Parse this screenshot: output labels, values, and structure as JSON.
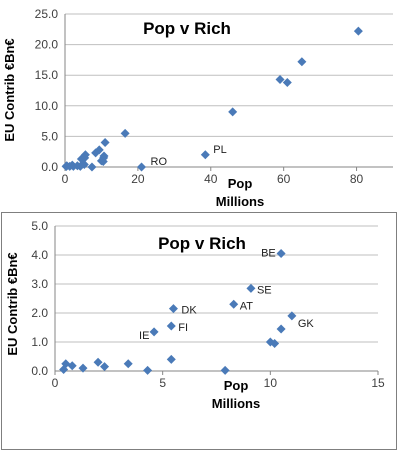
{
  "chart_data": [
    {
      "type": "scatter",
      "title": "Pop v Rich",
      "xlabel_line1": "Pop",
      "xlabel_line2": "Millions",
      "ylabel": "EU Contrib €Bn€",
      "xlim": [
        0,
        90
      ],
      "ylim": [
        0,
        25
      ],
      "xticks": [
        0,
        20,
        40,
        60,
        80
      ],
      "yticks": [
        "0.0",
        "5.0",
        "10.0",
        "15.0",
        "20.0",
        "25.0"
      ],
      "grid": "horizontal",
      "marker_color": "#4a7ab8",
      "points": [
        {
          "x": 0.3,
          "y": 0.1
        },
        {
          "x": 0.4,
          "y": 0.1
        },
        {
          "x": 0.5,
          "y": 0.2
        },
        {
          "x": 1.3,
          "y": 0.1
        },
        {
          "x": 2.0,
          "y": 0.3
        },
        {
          "x": 2.3,
          "y": 0.1
        },
        {
          "x": 3.4,
          "y": 0.2
        },
        {
          "x": 4.2,
          "y": 0.1
        },
        {
          "x": 4.5,
          "y": 1.3
        },
        {
          "x": 5.3,
          "y": 0.4
        },
        {
          "x": 5.4,
          "y": 1.5
        },
        {
          "x": 5.6,
          "y": 2.0
        },
        {
          "x": 7.4,
          "y": 0.0
        },
        {
          "x": 8.4,
          "y": 2.3
        },
        {
          "x": 9.4,
          "y": 2.8
        },
        {
          "x": 10.0,
          "y": 1.0
        },
        {
          "x": 10.5,
          "y": 0.9
        },
        {
          "x": 10.6,
          "y": 1.5
        },
        {
          "x": 10.7,
          "y": 1.8
        },
        {
          "x": 11.0,
          "y": 4.0
        },
        {
          "x": 16.5,
          "y": 5.5
        },
        {
          "x": 21.0,
          "y": 0.0
        },
        {
          "x": 38.5,
          "y": 2.0
        },
        {
          "x": 46.0,
          "y": 9.0
        },
        {
          "x": 59.0,
          "y": 14.3
        },
        {
          "x": 61.0,
          "y": 13.8
        },
        {
          "x": 65.0,
          "y": 17.2
        },
        {
          "x": 80.5,
          "y": 22.2
        }
      ],
      "annotations": [
        {
          "text": "RO",
          "x": 21.0,
          "y": 0.0
        },
        {
          "text": "PL",
          "x": 38.5,
          "y": 2.0
        }
      ]
    },
    {
      "type": "scatter",
      "title": "Pop v Rich",
      "xlabel_line1": "Pop",
      "xlabel_line2": "Millions",
      "ylabel": "EU Contrib €Bn€",
      "xlim": [
        0,
        15
      ],
      "ylim": [
        0,
        5
      ],
      "xticks": [
        0,
        5,
        10,
        15
      ],
      "yticks": [
        "0.0",
        "1.0",
        "2.0",
        "3.0",
        "4.0",
        "5.0"
      ],
      "grid": "horizontal",
      "marker_color": "#4a7ab8",
      "points": [
        {
          "x": 0.4,
          "y": 0.05
        },
        {
          "x": 0.5,
          "y": 0.25
        },
        {
          "x": 0.8,
          "y": 0.18
        },
        {
          "x": 1.3,
          "y": 0.1
        },
        {
          "x": 2.0,
          "y": 0.3
        },
        {
          "x": 2.3,
          "y": 0.15
        },
        {
          "x": 3.4,
          "y": 0.25
        },
        {
          "x": 4.3,
          "y": 0.02
        },
        {
          "x": 4.6,
          "y": 1.35
        },
        {
          "x": 5.4,
          "y": 0.4
        },
        {
          "x": 5.4,
          "y": 1.55
        },
        {
          "x": 5.5,
          "y": 2.15
        },
        {
          "x": 7.9,
          "y": 0.02
        },
        {
          "x": 8.3,
          "y": 2.3
        },
        {
          "x": 9.1,
          "y": 2.85
        },
        {
          "x": 10.0,
          "y": 1.0
        },
        {
          "x": 10.2,
          "y": 0.95
        },
        {
          "x": 10.5,
          "y": 1.45
        },
        {
          "x": 11.0,
          "y": 1.9
        },
        {
          "x": 10.5,
          "y": 4.05
        }
      ],
      "annotations": [
        {
          "text": "BE",
          "x": 10.5,
          "y": 4.05
        },
        {
          "text": "SE",
          "x": 9.1,
          "y": 2.85
        },
        {
          "text": "AT",
          "x": 8.3,
          "y": 2.3
        },
        {
          "text": "DK",
          "x": 5.5,
          "y": 2.15
        },
        {
          "text": "GK",
          "x": 11.0,
          "y": 1.9
        },
        {
          "text": "FI",
          "x": 5.4,
          "y": 1.55
        },
        {
          "text": "IE",
          "x": 4.6,
          "y": 1.35
        }
      ]
    }
  ]
}
